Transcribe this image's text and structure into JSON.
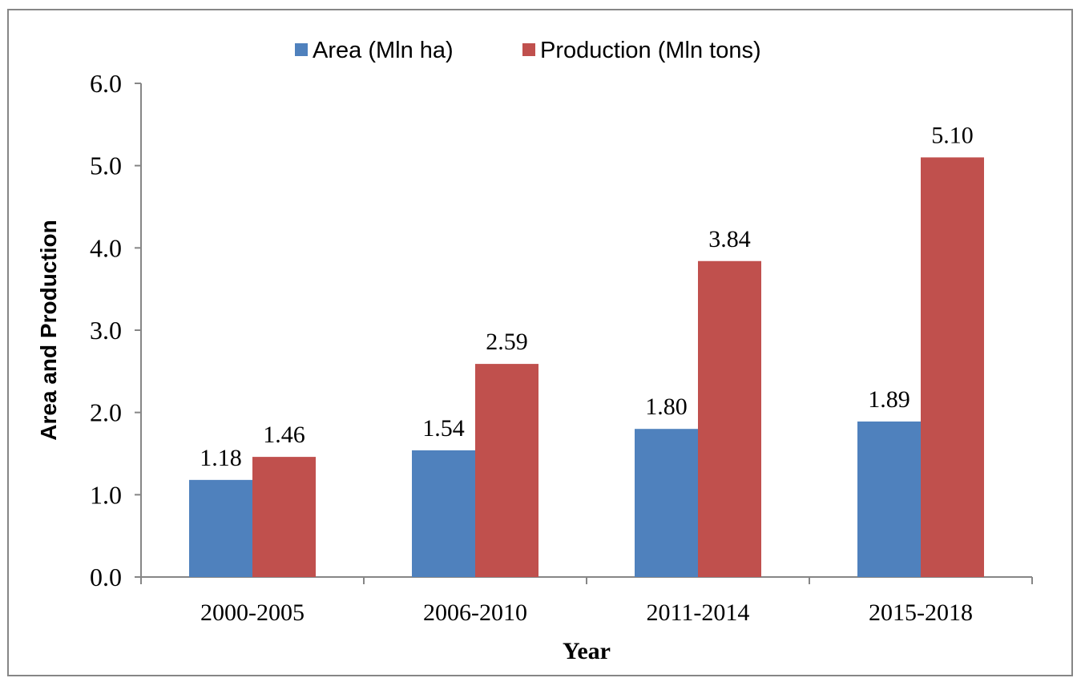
{
  "chart_data": {
    "type": "bar",
    "categories": [
      "2000-2005",
      "2006-2010",
      "2011-2014",
      "2015-2018"
    ],
    "series": [
      {
        "name": "Area (Mln ha)",
        "values": [
          1.18,
          1.54,
          1.8,
          1.89
        ],
        "labels": [
          "1.18",
          "1.54",
          "1.80",
          "1.89"
        ],
        "color": "#4f81bd"
      },
      {
        "name": "Production (Mln tons)",
        "values": [
          1.46,
          2.59,
          3.84,
          5.1
        ],
        "labels": [
          "1.46",
          "2.59",
          "3.84",
          "5.10"
        ],
        "color": "#c0504d"
      }
    ],
    "xlabel": "Year",
    "ylabel": "Area and Production",
    "ylim": [
      0,
      6
    ],
    "yticks": [
      "0.0",
      "1.0",
      "2.0",
      "3.0",
      "4.0",
      "5.0",
      "6.0"
    ],
    "grid": false,
    "legend_position": "top-center"
  }
}
